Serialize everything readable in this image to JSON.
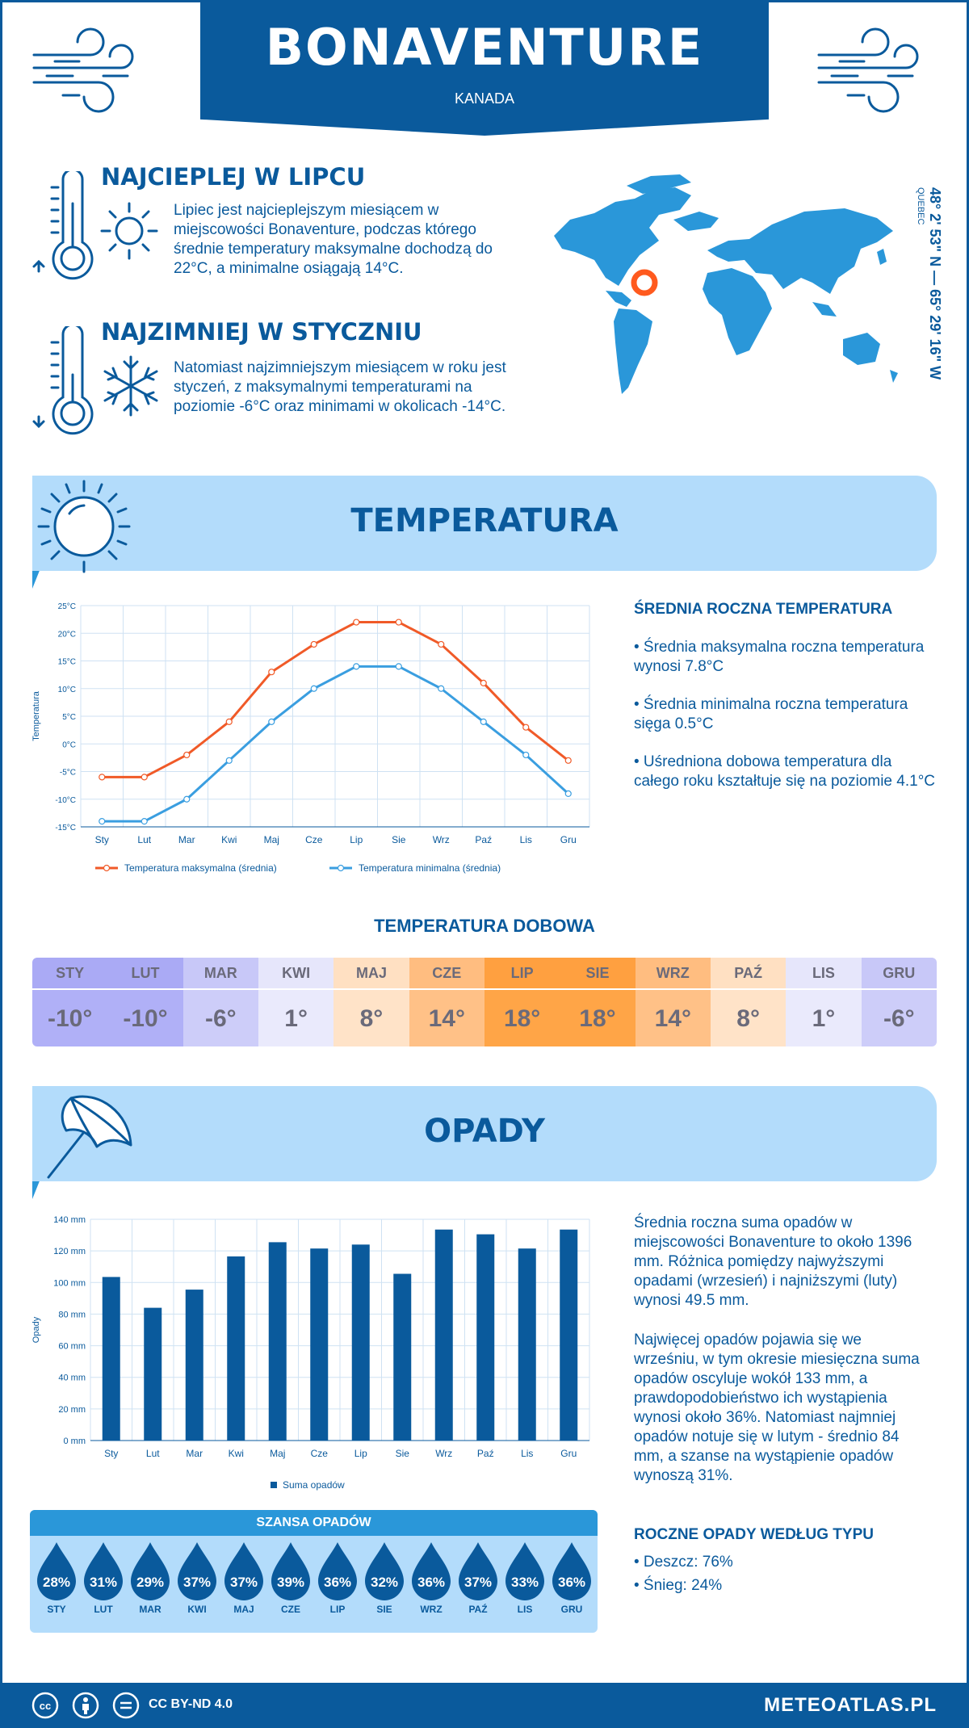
{
  "header": {
    "city": "BONAVENTURE",
    "country": "KANADA"
  },
  "warmest": {
    "title": "NAJCIEPLEJ W LIPCU",
    "text": "Lipiec jest najcieplejszym miesiącem w miejscowości Bonaventure, podczas którego średnie temperatury maksymalne dochodzą do 22°C, a minimalne osiągają 14°C."
  },
  "coldest": {
    "title": "NAJZIMNIEJ W STYCZNIU",
    "text": "Natomiast najzimniejszym miesiącem w roku jest styczeń, z maksymalnymi temperaturami na poziomie -6°C oraz minimami w okolicach -14°C."
  },
  "location": {
    "coords": "48° 2' 53\" N — 65° 29' 16\" W",
    "region": "QUEBEC"
  },
  "temperature_section": {
    "title": "TEMPERATURA",
    "side_heading": "ŚREDNIA ROCZNA TEMPERATURA",
    "bullets": [
      "• Średnia maksymalna roczna temperatura wynosi 7.8°C",
      "• Średnia minimalna roczna temperatura sięga 0.5°C",
      "• Uśredniona dobowa temperatura dla całego roku kształtuje się na poziomie 4.1°C"
    ]
  },
  "daily": {
    "title": "TEMPERATURA DOBOWA",
    "cells": [
      {
        "month": "STY",
        "value": "-10°",
        "bg_top": "#aaaaf5",
        "bg_bottom": "#b0b0f7"
      },
      {
        "month": "LUT",
        "value": "-10°",
        "bg_top": "#aaaaf5",
        "bg_bottom": "#b0b0f7"
      },
      {
        "month": "MAR",
        "value": "-6°",
        "bg_top": "#c8c8f8",
        "bg_bottom": "#cdcdf9"
      },
      {
        "month": "KWI",
        "value": "1°",
        "bg_top": "#e6e6fb",
        "bg_bottom": "#eaeafc"
      },
      {
        "month": "MAJ",
        "value": "8°",
        "bg_top": "#ffe0c2",
        "bg_bottom": "#ffe3c8"
      },
      {
        "month": "CZE",
        "value": "14°",
        "bg_top": "#ffbd80",
        "bg_bottom": "#ffc187"
      },
      {
        "month": "LIP",
        "value": "18°",
        "bg_top": "#ffa040",
        "bg_bottom": "#ffa547"
      },
      {
        "month": "SIE",
        "value": "18°",
        "bg_top": "#ffa040",
        "bg_bottom": "#ffa547"
      },
      {
        "month": "WRZ",
        "value": "14°",
        "bg_top": "#ffbd80",
        "bg_bottom": "#ffc187"
      },
      {
        "month": "PAŹ",
        "value": "8°",
        "bg_top": "#ffe0c2",
        "bg_bottom": "#ffe3c8"
      },
      {
        "month": "LIS",
        "value": "1°",
        "bg_top": "#e6e6fb",
        "bg_bottom": "#eaeafc"
      },
      {
        "month": "GRU",
        "value": "-6°",
        "bg_top": "#c8c8f8",
        "bg_bottom": "#cdcdf9"
      }
    ]
  },
  "precip_section": {
    "title": "OPADY",
    "paragraph1": "Średnia roczna suma opadów w miejscowości Bonaventure to około 1396 mm. Różnica pomiędzy najwyższymi opadami (wrzesień) i najniższymi (luty) wynosi 49.5 mm.",
    "paragraph2": "Najwięcej opadów pojawia się we wrześniu, w tym okresie miesięczna suma opadów oscyluje wokół 133 mm, a prawdopodobieństwo ich wystąpienia wynosi około 36%. Natomiast najmniej opadów notuje się w lutym - średnio 84 mm, a szanse na wystąpienie opadów wynoszą 31%.",
    "type_heading": "ROCZNE OPADY WEDŁUG TYPU",
    "types": [
      "• Deszcz: 76%",
      "• Śnieg: 24%"
    ]
  },
  "chance": {
    "title": "SZANSA OPADÓW",
    "items": [
      {
        "month": "STY",
        "value": "28%"
      },
      {
        "month": "LUT",
        "value": "31%"
      },
      {
        "month": "MAR",
        "value": "29%"
      },
      {
        "month": "KWI",
        "value": "37%"
      },
      {
        "month": "MAJ",
        "value": "37%"
      },
      {
        "month": "CZE",
        "value": "39%"
      },
      {
        "month": "LIP",
        "value": "36%"
      },
      {
        "month": "SIE",
        "value": "32%"
      },
      {
        "month": "WRZ",
        "value": "36%"
      },
      {
        "month": "PAŹ",
        "value": "37%"
      },
      {
        "month": "LIS",
        "value": "33%"
      },
      {
        "month": "GRU",
        "value": "36%"
      }
    ]
  },
  "footer": {
    "license": "CC BY-ND 4.0",
    "brand": "METEOATLAS.PL"
  },
  "colors": {
    "primary": "#0a5a9c",
    "light": "#b3dcfb",
    "max_line": "#f05a28",
    "min_line": "#3a9ee0",
    "bar": "#0a5a9c"
  },
  "chart_data": [
    {
      "type": "line",
      "categories": [
        "Sty",
        "Lut",
        "Mar",
        "Kwi",
        "Maj",
        "Cze",
        "Lip",
        "Sie",
        "Wrz",
        "Paź",
        "Lis",
        "Gru"
      ],
      "series": [
        {
          "name": "Temperatura maksymalna (średnia)",
          "values": [
            -6,
            -6,
            -2,
            4,
            13,
            18,
            22,
            22,
            18,
            11,
            3,
            -3
          ]
        },
        {
          "name": "Temperatura minimalna (średnia)",
          "values": [
            -14,
            -14,
            -10,
            -3,
            4,
            10,
            14,
            14,
            10,
            4,
            -2,
            -9
          ]
        }
      ],
      "ylabel": "Temperatura",
      "ylim": [
        -15,
        25
      ],
      "yticks": [
        "-15°C",
        "-10°C",
        "-5°C",
        "0°C",
        "5°C",
        "10°C",
        "15°C",
        "20°C",
        "25°C"
      ],
      "ytick_values": [
        -15,
        -10,
        -5,
        0,
        5,
        10,
        15,
        20,
        25
      ],
      "grid": true,
      "legend": "bottom"
    },
    {
      "type": "bar",
      "categories": [
        "Sty",
        "Lut",
        "Mar",
        "Kwi",
        "Maj",
        "Cze",
        "Lip",
        "Sie",
        "Wrz",
        "Paź",
        "Lis",
        "Gru"
      ],
      "series": [
        {
          "name": "Suma opadów",
          "values": [
            103.5,
            84,
            95.5,
            116.5,
            125.5,
            121.5,
            124,
            105.5,
            133.5,
            130.5,
            121.5,
            133.5
          ]
        }
      ],
      "ylabel": "Opady",
      "ylim": [
        0,
        140
      ],
      "yticks": [
        "0 mm",
        "20 mm",
        "40 mm",
        "60 mm",
        "80 mm",
        "100 mm",
        "120 mm",
        "140 mm"
      ],
      "ytick_values": [
        0,
        20,
        40,
        60,
        80,
        100,
        120,
        140
      ],
      "grid": true,
      "legend": "bottom"
    }
  ]
}
